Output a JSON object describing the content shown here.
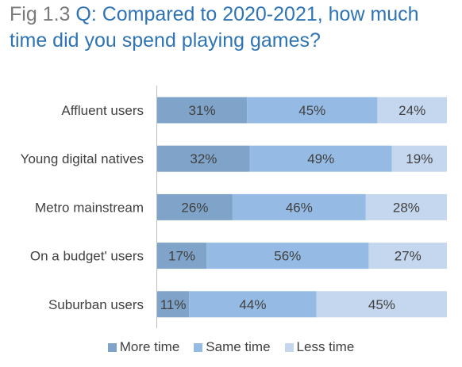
{
  "title": {
    "prefix": "Fig 1.3",
    "question": "Q: Compared to 2020-2021, how much time did you spend playing games?"
  },
  "chart_data": {
    "type": "bar",
    "orientation": "horizontal",
    "stacked": true,
    "categories": [
      "Affluent users",
      "Young digital natives",
      "Metro mainstream",
      "On a budget' users",
      "Suburban users"
    ],
    "series": [
      {
        "name": "More time",
        "values": [
          31,
          32,
          26,
          17,
          11
        ],
        "labels": [
          "31%",
          "32%",
          "26%",
          "17%",
          "11%"
        ],
        "color": "#7fa3c9"
      },
      {
        "name": "Same time",
        "values": [
          45,
          49,
          46,
          56,
          44
        ],
        "labels": [
          "45%",
          "49%",
          "46%",
          "56%",
          "44%"
        ],
        "color": "#95bbe4"
      },
      {
        "name": "Less time",
        "values": [
          24,
          19,
          28,
          27,
          45
        ],
        "labels": [
          "24%",
          "19%",
          "28%",
          "27%",
          "45%"
        ],
        "color": "#c5d7ee"
      }
    ],
    "xlim": [
      0,
      100
    ],
    "legend_position": "bottom",
    "grid": false
  }
}
